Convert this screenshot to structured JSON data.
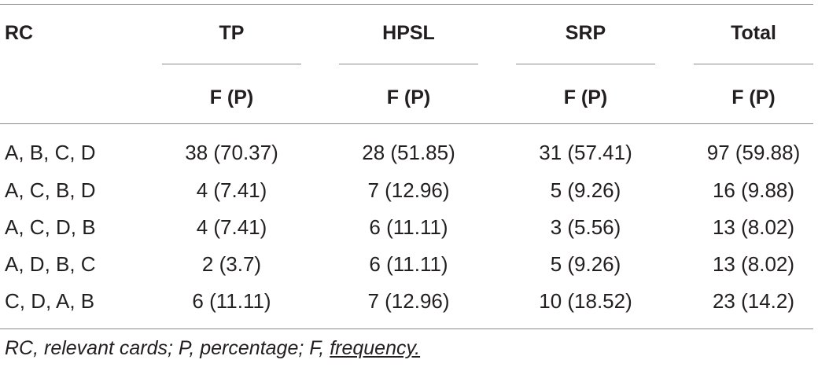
{
  "table": {
    "headers": {
      "row_label": "RC",
      "groups": [
        "TP",
        "HPSL",
        "SRP",
        "Total"
      ],
      "sub": "F (P)"
    },
    "rows": [
      {
        "label": "A, B, C, D",
        "values": [
          "38 (70.37)",
          "28 (51.85)",
          "31 (57.41)",
          "97 (59.88)"
        ]
      },
      {
        "label": "A, C, B, D",
        "values": [
          "4 (7.41)",
          "7 (12.96)",
          "5 (9.26)",
          "16 (9.88)"
        ]
      },
      {
        "label": "A, C, D, B",
        "values": [
          "4 (7.41)",
          "6 (11.11)",
          "3 (5.56)",
          "13 (8.02)"
        ]
      },
      {
        "label": "A, D, B, C",
        "values": [
          "2 (3.7)",
          "6 (11.11)",
          "5 (9.26)",
          "13 (8.02)"
        ]
      },
      {
        "label": "C, D, A, B",
        "values": [
          "6 (11.11)",
          "7 (12.96)",
          "10 (18.52)",
          "23 (14.2)"
        ]
      }
    ]
  },
  "footnote": {
    "text": "RC, relevant cards; P, percentage; F, ",
    "link": "frequency."
  }
}
